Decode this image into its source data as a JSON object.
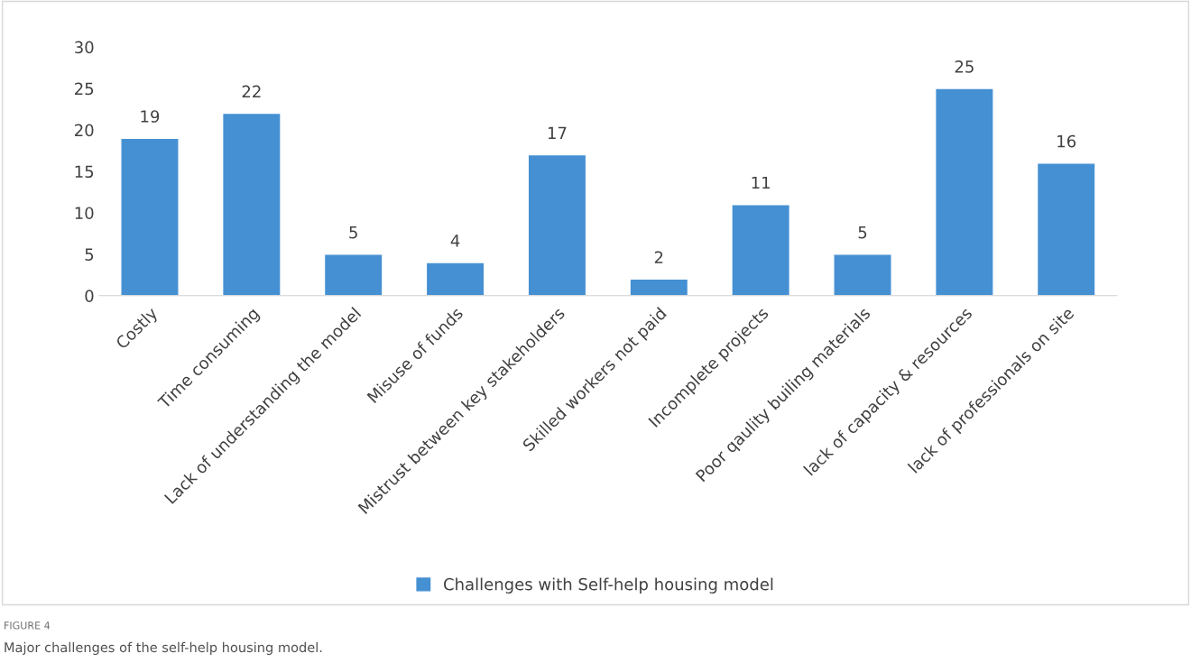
{
  "chart_data": {
    "type": "bar",
    "categories": [
      "Costly",
      "Time consuming",
      "Lack of understanding the model",
      "Misuse of funds",
      "Mistrust between key stakeholders",
      "Skilled workers not paid",
      "Incomplete projects",
      "Poor qaulity builing materials",
      "lack of capacity & resources",
      "lack of professionals on site"
    ],
    "series": [
      {
        "name": "Challenges with Self-help housing model",
        "color": "#4590d3",
        "values": [
          19,
          22,
          5,
          4,
          17,
          2,
          11,
          5,
          25,
          16
        ]
      }
    ],
    "ylim": [
      0,
      30
    ],
    "yticks": [
      0,
      5,
      10,
      15,
      20,
      25,
      30
    ],
    "data_labels": true,
    "grid": false,
    "legend": "bottom",
    "annotations": [
      "FIGURE 4",
      "Major challenges of the self-help housing model."
    ]
  }
}
